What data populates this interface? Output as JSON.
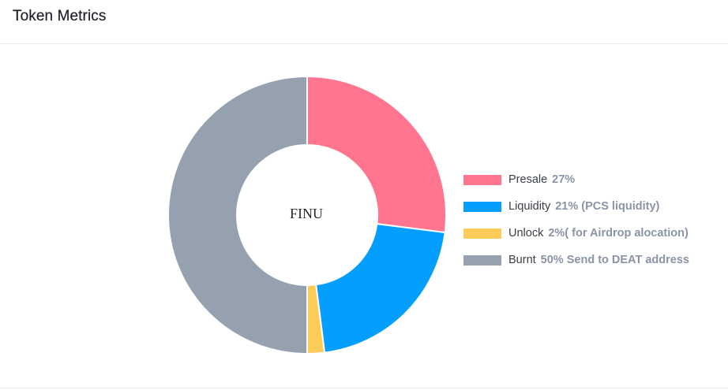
{
  "card": {
    "title": "Token Metrics"
  },
  "chart_data": {
    "type": "pie",
    "variant": "donut",
    "title": "",
    "center_label": "FINU",
    "categories": [
      "Presale",
      "Liquidity",
      "Unlock",
      "Burnt"
    ],
    "values": [
      27,
      21,
      2,
      50
    ],
    "unit": "%",
    "colors": [
      "#ff7590",
      "#049ffe",
      "#fdcb57",
      "#96a1b0"
    ],
    "legend": {
      "placement": "right",
      "entries": [
        {
          "name": "Presale",
          "value_text": "27%"
        },
        {
          "name": "Liquidity",
          "value_text": "21% (PCS liquidity)"
        },
        {
          "name": "Unlock",
          "value_text": "2%( for Airdrop alocation)"
        },
        {
          "name": "Burnt",
          "value_text": "50% Send to DEAT address"
        }
      ]
    }
  }
}
